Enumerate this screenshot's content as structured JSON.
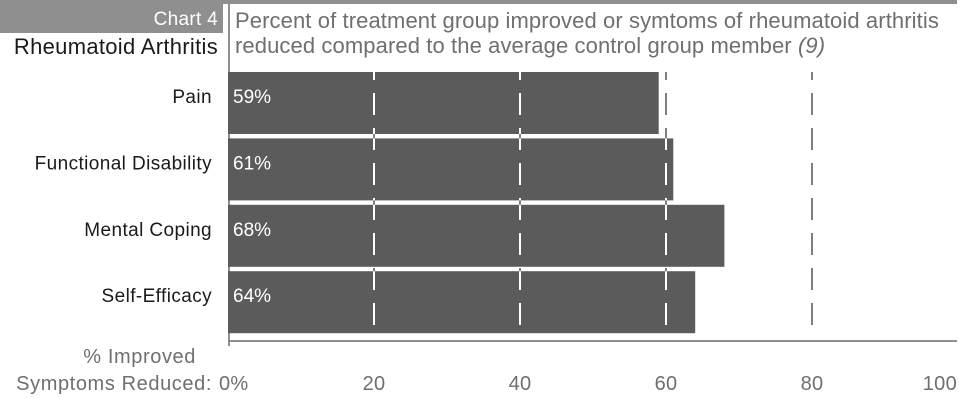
{
  "header": {
    "chart_number": "Chart 4",
    "subject": "Rheumatoid Arthritis"
  },
  "chart_data": {
    "type": "bar",
    "orientation": "horizontal",
    "title_lines": [
      "Percent of treatment group improved or symtoms of rheumatoid arthritis",
      "reduced compared to the average control group member"
    ],
    "title_ref": "(9)",
    "categories": [
      "Pain",
      "Functional Disability",
      "Mental Coping",
      "Self-Efficacy"
    ],
    "values": [
      59,
      61,
      68,
      64
    ],
    "data_labels": [
      "59%",
      "61%",
      "68%",
      "64%"
    ],
    "xlabel_lines": [
      "% Improved",
      "Symptoms Reduced:"
    ],
    "xlim": [
      0,
      100
    ],
    "xticks": [
      0,
      20,
      40,
      60,
      80,
      100
    ],
    "xtick_labels": [
      "0%",
      "20",
      "40",
      "60",
      "80",
      "100"
    ],
    "grid": true
  },
  "colors": {
    "bar": "#5b5b5b",
    "header_box": "#8f8f8f",
    "rule": "#8f8f8f",
    "muted_text": "#6f6f6f",
    "label_text": "#1a1a1a",
    "grid_on_background": "#3a3a3a",
    "grid_on_bar": "#ffffff"
  }
}
